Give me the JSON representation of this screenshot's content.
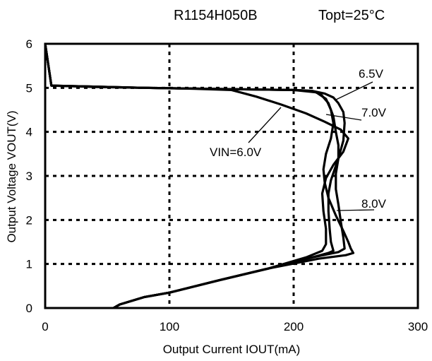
{
  "header": {
    "part_number": "R1154H050B",
    "condition": "Topt=25°C"
  },
  "chart_data": {
    "type": "line",
    "xlabel": "Output Current IOUT(mA)",
    "ylabel": "Output Voltage VOUT(V)",
    "xlim": [
      0,
      300
    ],
    "ylim": [
      0,
      6
    ],
    "xticks": [
      "0",
      "100",
      "200",
      "300"
    ],
    "yticks": [
      "0",
      "1",
      "2",
      "3",
      "4",
      "5",
      "6"
    ],
    "grid": true,
    "series": [
      {
        "name": "VIN=6.0V",
        "x": [
          0,
          5,
          40,
          80,
          120,
          150,
          170,
          190,
          210,
          225,
          238,
          244,
          240,
          232,
          226,
          223,
          224,
          226,
          226,
          223,
          210,
          180,
          140,
          100,
          80,
          60,
          55
        ],
        "y": [
          6.0,
          5.05,
          5.02,
          5.0,
          4.98,
          4.95,
          4.8,
          4.62,
          4.42,
          4.23,
          4.05,
          3.85,
          3.55,
          3.25,
          2.95,
          2.6,
          2.2,
          1.8,
          1.45,
          1.3,
          1.15,
          0.9,
          0.63,
          0.35,
          0.25,
          0.08,
          0.0
        ]
      },
      {
        "name": "6.5V",
        "x": [
          0,
          5,
          80,
          150,
          200,
          215,
          222,
          228,
          232,
          234,
          236,
          236,
          233,
          230,
          228,
          228,
          229,
          230,
          232,
          228,
          215,
          180,
          140,
          100,
          80,
          60,
          55
        ],
        "y": [
          6.0,
          5.05,
          5.0,
          4.97,
          4.95,
          4.93,
          4.85,
          4.65,
          4.35,
          4.0,
          3.7,
          3.4,
          3.15,
          2.9,
          2.6,
          2.2,
          1.8,
          1.5,
          1.3,
          1.25,
          1.15,
          0.9,
          0.63,
          0.35,
          0.25,
          0.08,
          0.0
        ]
      },
      {
        "name": "7.0V",
        "x": [
          0,
          5,
          80,
          150,
          200,
          215,
          225,
          232,
          236,
          240,
          241,
          240,
          236,
          234,
          234,
          236,
          238,
          240,
          241,
          236,
          215,
          180,
          140,
          100,
          80,
          60,
          55
        ],
        "y": [
          6.0,
          5.05,
          5.0,
          4.97,
          4.95,
          4.93,
          4.87,
          4.78,
          4.65,
          4.45,
          4.2,
          3.8,
          3.4,
          3.05,
          2.7,
          2.35,
          1.95,
          1.6,
          1.35,
          1.27,
          1.15,
          0.9,
          0.63,
          0.35,
          0.25,
          0.08,
          0.0
        ]
      },
      {
        "name": "8.0V",
        "x": [
          0,
          5,
          80,
          150,
          200,
          218,
          226,
          230,
          232,
          230,
          226,
          224,
          225,
          228,
          234,
          240,
          244,
          246,
          248,
          242,
          220,
          180,
          140,
          100,
          80,
          60,
          55
        ],
        "y": [
          6.0,
          5.05,
          5.0,
          4.97,
          4.95,
          4.9,
          4.75,
          4.5,
          4.2,
          3.85,
          3.5,
          3.15,
          2.85,
          2.5,
          2.1,
          1.75,
          1.5,
          1.35,
          1.25,
          1.2,
          1.12,
          0.9,
          0.63,
          0.35,
          0.25,
          0.08,
          0.0
        ]
      }
    ],
    "annotations": [
      {
        "text": "6.5V",
        "series": "6.5V"
      },
      {
        "text": "7.0V",
        "series": "7.0V"
      },
      {
        "text": "VIN=6.0V",
        "series": "VIN=6.0V"
      },
      {
        "text": "8.0V",
        "series": "8.0V"
      }
    ]
  }
}
